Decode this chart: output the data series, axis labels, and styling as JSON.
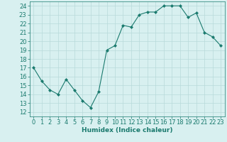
{
  "x": [
    0,
    1,
    2,
    3,
    4,
    5,
    6,
    7,
    8,
    9,
    10,
    11,
    12,
    13,
    14,
    15,
    16,
    17,
    18,
    19,
    20,
    21,
    22,
    23
  ],
  "y": [
    17.0,
    15.5,
    14.5,
    14.0,
    15.7,
    14.5,
    13.3,
    12.5,
    14.3,
    19.0,
    19.5,
    21.8,
    21.6,
    23.0,
    23.3,
    23.3,
    24.0,
    24.0,
    24.0,
    22.7,
    23.2,
    21.0,
    20.5,
    19.5
  ],
  "xlabel": "Humidex (Indice chaleur)",
  "ylim": [
    11.5,
    24.5
  ],
  "xlim": [
    -0.5,
    23.5
  ],
  "yticks": [
    12,
    13,
    14,
    15,
    16,
    17,
    18,
    19,
    20,
    21,
    22,
    23,
    24
  ],
  "xticks": [
    0,
    1,
    2,
    3,
    4,
    5,
    6,
    7,
    8,
    9,
    10,
    11,
    12,
    13,
    14,
    15,
    16,
    17,
    18,
    19,
    20,
    21,
    22,
    23
  ],
  "line_color": "#1a7a6e",
  "marker_color": "#1a7a6e",
  "bg_color": "#d8f0f0",
  "grid_color": "#b8dada",
  "label_fontsize": 6.5,
  "tick_fontsize": 6
}
